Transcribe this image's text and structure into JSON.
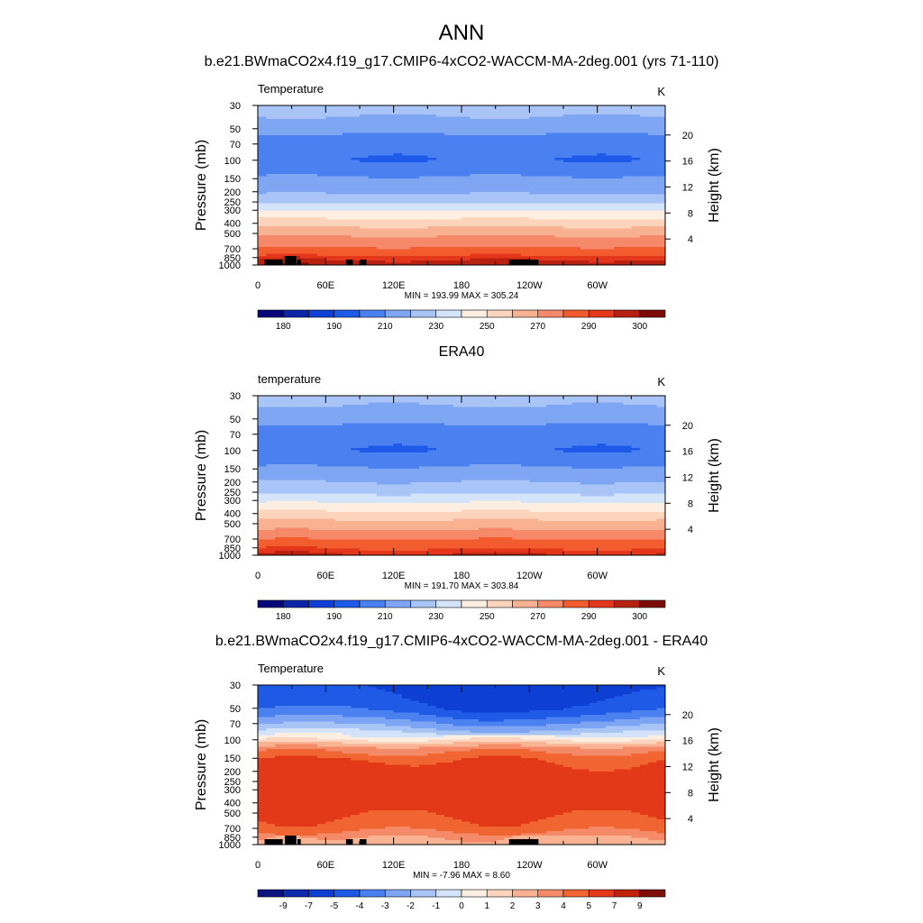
{
  "figure_title": "ANN",
  "colors": {
    "abs_scale": [
      "#06067a",
      "#0b24a8",
      "#0f3fd6",
      "#1e5aea",
      "#4a80f0",
      "#7ea6f3",
      "#a9c5f7",
      "#d4e4fb",
      "#fdeee2",
      "#fcd3bb",
      "#f9b291",
      "#f6896a",
      "#f25c2e",
      "#e3361a",
      "#b8200f",
      "#7b0b06"
    ],
    "diff_scale": [
      "#0a1380",
      "#0d2ab0",
      "#0d3fd4",
      "#1e5ae6",
      "#4a80ef",
      "#7ea5f3",
      "#a8c5f6",
      "#d3e3fa",
      "#fdeee2",
      "#fcd4bd",
      "#f9b393",
      "#f48a67",
      "#f06531",
      "#e33918",
      "#bf2409",
      "#7c0f07"
    ],
    "land": "#000000"
  },
  "chart_data": [
    {
      "type": "heatmap",
      "id": "model",
      "panel_title": "b.e21.BWmaCO2x4.f19_g17.CMIP6-4xCO2-WACCM-MA-2deg.001 (yrs 71-110)",
      "left_label": "Temperature",
      "units": "K",
      "ylabel": "Pressure (mb)",
      "ylabel2": "Height (km)",
      "xlabel": "",
      "x_ticks": [
        "0",
        "60E",
        "120E",
        "180",
        "120W",
        "60W"
      ],
      "p_ticks": [
        "30",
        "50",
        "70",
        "100",
        "150",
        "200",
        "250",
        "300",
        "400",
        "500",
        "700",
        "850",
        "1000"
      ],
      "height_ticks": [
        "4",
        "8",
        "12",
        "16",
        "20"
      ],
      "ylim_mb": [
        1000,
        30
      ],
      "stats": "MIN = 193.99  MAX = 305.24",
      "levels": [
        180,
        185,
        190,
        200,
        210,
        220,
        230,
        240,
        250,
        260,
        270,
        280,
        290,
        295,
        300
      ],
      "colorbar_labels": [
        "180",
        "190",
        "210",
        "230",
        "250",
        "270",
        "290",
        "300"
      ],
      "profile": {
        "pressure_mb": [
          30,
          50,
          70,
          100,
          150,
          200,
          250,
          300,
          400,
          500,
          700,
          850,
          1000
        ],
        "temperature_K": [
          225,
          213,
          203,
          200,
          212,
          218,
          228,
          240,
          256,
          268,
          282,
          293,
          299
        ]
      }
    },
    {
      "type": "heatmap",
      "id": "obs",
      "panel_title": "ERA40",
      "left_label": "temperature",
      "units": "K",
      "ylabel": "Pressure (mb)",
      "ylabel2": "Height (km)",
      "xlabel": "",
      "x_ticks": [
        "0",
        "60E",
        "120E",
        "180",
        "120W",
        "60W"
      ],
      "p_ticks": [
        "30",
        "50",
        "70",
        "100",
        "150",
        "200",
        "250",
        "300",
        "400",
        "500",
        "700",
        "850",
        "1000"
      ],
      "height_ticks": [
        "4",
        "8",
        "12",
        "16",
        "20"
      ],
      "ylim_mb": [
        1000,
        30
      ],
      "stats": "MIN = 191.70  MAX = 303.84",
      "levels": [
        180,
        185,
        190,
        200,
        210,
        220,
        230,
        240,
        250,
        260,
        270,
        280,
        290,
        295,
        300
      ],
      "colorbar_labels": [
        "180",
        "190",
        "210",
        "230",
        "250",
        "270",
        "290",
        "300"
      ],
      "profile": {
        "pressure_mb": [
          30,
          50,
          70,
          100,
          150,
          200,
          250,
          300,
          400,
          500,
          700,
          850,
          1000
        ],
        "temperature_K": [
          224,
          213,
          203,
          200,
          212,
          220,
          228,
          238,
          253,
          264,
          280,
          289,
          296
        ]
      }
    },
    {
      "type": "heatmap",
      "id": "diff",
      "panel_title": "b.e21.BWmaCO2x4.f19_g17.CMIP6-4xCO2-WACCM-MA-2deg.001 - ERA40",
      "left_label": "Temperature",
      "units": "K",
      "ylabel": "Pressure (mb)",
      "ylabel2": "Height (km)",
      "xlabel": "",
      "x_ticks": [
        "0",
        "60E",
        "120E",
        "180",
        "120W",
        "60W"
      ],
      "p_ticks": [
        "30",
        "50",
        "70",
        "100",
        "150",
        "200",
        "250",
        "300",
        "400",
        "500",
        "700",
        "850",
        "1000"
      ],
      "height_ticks": [
        "4",
        "8",
        "12",
        "16",
        "20"
      ],
      "ylim_mb": [
        1000,
        30
      ],
      "stats": "MIN =  -7.96  MAX =   8.60",
      "levels": [
        -9,
        -7,
        -5,
        -4,
        -3,
        -2,
        -1,
        0,
        1,
        2,
        3,
        4,
        5,
        7,
        9
      ],
      "colorbar_labels": [
        "-9",
        "-7",
        "-5",
        "-4",
        "-3",
        "-2",
        "-1",
        "0",
        "1",
        "2",
        "3",
        "4",
        "5",
        "7",
        "9"
      ],
      "profile": {
        "pressure_mb": [
          30,
          40,
          50,
          60,
          70,
          85,
          100,
          120,
          150,
          200,
          250,
          300,
          400,
          500,
          700,
          850,
          1000
        ],
        "delta_K": [
          -5.5,
          -5.0,
          -4.5,
          -3.5,
          -2.5,
          -1.0,
          1.0,
          3.5,
          4.8,
          5.5,
          6.0,
          6.3,
          6.0,
          5.2,
          4.4,
          3.2,
          2.5
        ]
      }
    }
  ]
}
